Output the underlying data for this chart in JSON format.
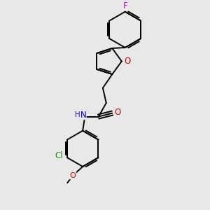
{
  "background_color": "#e8e8e8",
  "figsize": [
    3.0,
    3.0
  ],
  "dpi": 100,
  "line_width": 1.4,
  "font_size": 8.5,
  "xlim": [
    -1.5,
    1.8
  ],
  "ylim": [
    -1.9,
    3.0
  ],
  "F_color": "#cc00cc",
  "O_color": "#cc0000",
  "N_color": "#0000cc",
  "Cl_color": "#228B22",
  "bond_color": "#000000"
}
